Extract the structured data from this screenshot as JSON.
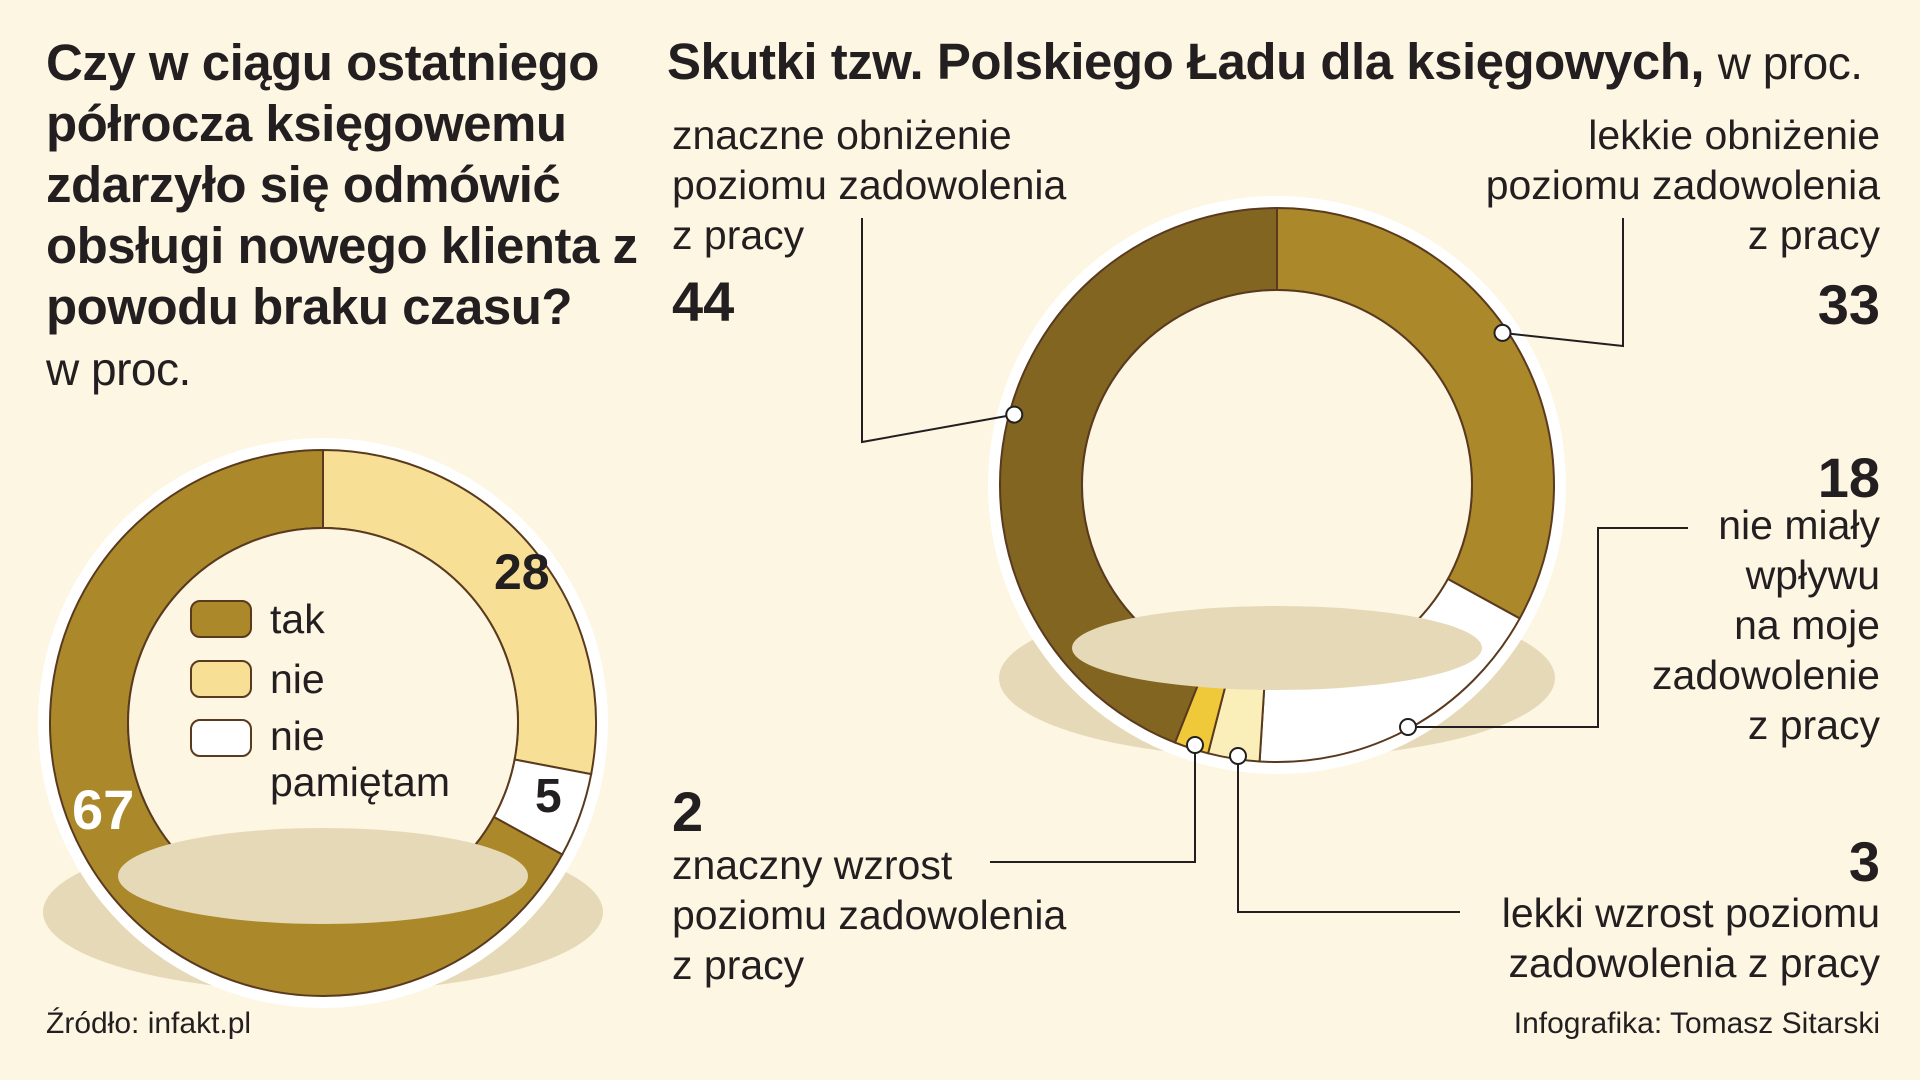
{
  "left": {
    "title": "Czy w ciągu ostatniego półrocza księgowemu zdarzyło się odmówić obsługi nowego klienta z powodu braku czasu?",
    "unit": "w proc."
  },
  "right": {
    "title": "Skutki tzw. Polskiego Ładu dla księgowych,",
    "unit": "w proc."
  },
  "footer": {
    "source": "Źródło: infakt.pl",
    "credit": "Infografika: Tomasz Sitarski"
  },
  "colors": {
    "background": "#fdf6e3",
    "dark_olive": "#826521",
    "gold": "#ab8829",
    "light_yellow": "#f7df95",
    "yellow": "#f0c93a",
    "pale_yellow": "#fbefb9",
    "white": "#ffffff",
    "shadow": "#e6d9b7",
    "outline": "#5a3a1e"
  },
  "chart_data": [
    {
      "type": "pie",
      "variant": "donut",
      "categories": [
        "tak",
        "nie",
        "nie pamiętam"
      ],
      "values": [
        67,
        28,
        5
      ],
      "colors": [
        "#ab8829",
        "#f7df95",
        "#ffffff"
      ],
      "legend": [
        "tak",
        "nie",
        "nie pamiętam"
      ],
      "legend_placement": "center",
      "data_labels": [
        "67",
        "28",
        "5"
      ]
    },
    {
      "type": "pie",
      "variant": "donut",
      "categories": [
        "znaczne obniżenie poziomu zadowolenia z pracy",
        "lekkie obniżenie poziomu zadowolenia z pracy",
        "nie miały wpływu na moje zadowolenie z pracy",
        "lekki wzrost poziomu zadowolenia z pracy",
        "znaczny wzrost poziomu zadowolenia z pracy"
      ],
      "values": [
        44,
        33,
        18,
        3,
        2
      ],
      "colors": [
        "#826521",
        "#ab8829",
        "#ffffff",
        "#fbefb9",
        "#f0c93a"
      ],
      "labels": [
        {
          "text": "znaczne obniżenie\npoziomu zadowolenia\nz pracy",
          "value": "44"
        },
        {
          "text": "lekkie obniżenie\npoziomu zadowolenia\nz pracy",
          "value": "33"
        },
        {
          "text": "nie miały\nwpływu\nna moje\nzadowolenie\nz pracy",
          "value": "18"
        },
        {
          "text": "lekki wzrost poziomu\nzadowolenia z pracy",
          "value": "3"
        },
        {
          "text": "znaczny wzrost\npoziomu zadowolenia\nz pracy",
          "value": "2"
        }
      ]
    }
  ]
}
